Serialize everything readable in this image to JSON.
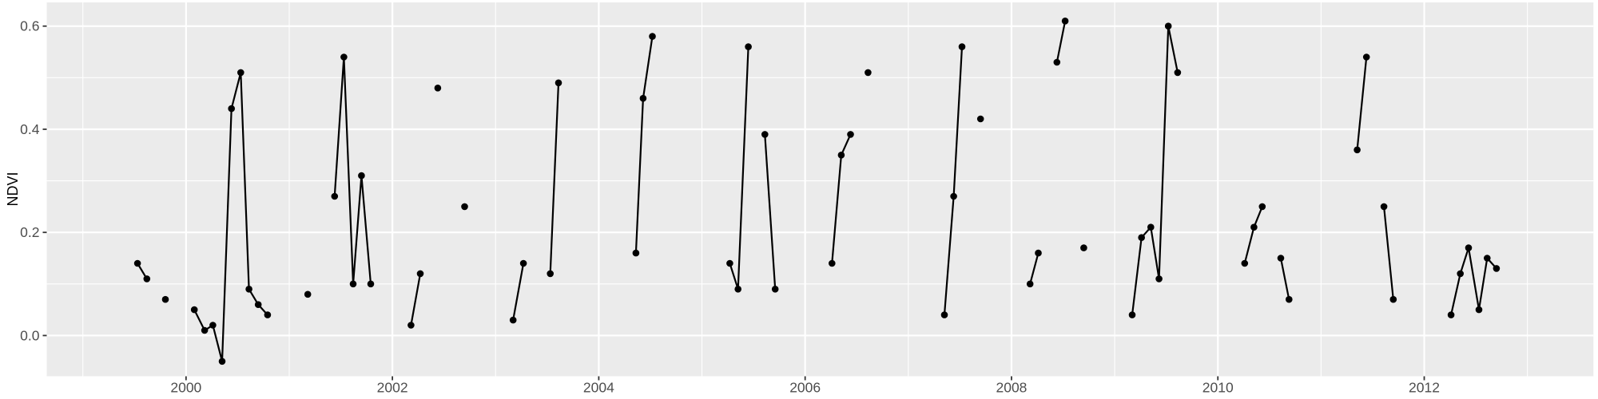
{
  "figure": {
    "ylabel": "NDVI",
    "colors": {
      "outer_bg": "#FFFFFF",
      "panel_bg": "#EBEBEB",
      "grid": "#FFFFFF",
      "series": "#000000",
      "axis_text": "#4D4D4D",
      "axis_title": "#000000",
      "tick_mark": "#333333"
    }
  },
  "chart_data": {
    "type": "line",
    "title": "",
    "xlabel": "",
    "ylabel": "NDVI",
    "legend": "none",
    "grid": "major+minor",
    "marker": "point",
    "xlim": [
      1998.65,
      2013.64
    ],
    "ylim": [
      -0.079,
      0.646
    ],
    "x_ticks": [
      {
        "v": 2000,
        "label": "2000"
      },
      {
        "v": 2002,
        "label": "2002"
      },
      {
        "v": 2004,
        "label": "2004"
      },
      {
        "v": 2006,
        "label": "2006"
      },
      {
        "v": 2008,
        "label": "2008"
      },
      {
        "v": 2010,
        "label": "2010"
      },
      {
        "v": 2012,
        "label": "2012"
      }
    ],
    "x_minor_ticks": [
      1999,
      2001,
      2003,
      2005,
      2007,
      2009,
      2011,
      2013
    ],
    "y_ticks": [
      {
        "v": 0.0,
        "label": "0.0"
      },
      {
        "v": 0.2,
        "label": "0.2"
      },
      {
        "v": 0.4,
        "label": "0.4"
      },
      {
        "v": 0.6,
        "label": "0.6"
      }
    ],
    "y_minor_ticks": [
      0.1,
      0.3,
      0.5
    ],
    "segments": [
      {
        "points": [
          [
            1999.53,
            0.14
          ],
          [
            1999.62,
            0.11
          ]
        ]
      },
      {
        "points": [
          [
            1999.8,
            0.07
          ]
        ]
      },
      {
        "points": [
          [
            2000.08,
            0.05
          ],
          [
            2000.18,
            0.01
          ],
          [
            2000.26,
            0.02
          ],
          [
            2000.35,
            -0.05
          ],
          [
            2000.44,
            0.44
          ],
          [
            2000.53,
            0.51
          ],
          [
            2000.61,
            0.09
          ],
          [
            2000.7,
            0.06
          ],
          [
            2000.79,
            0.04
          ]
        ]
      },
      {
        "points": [
          [
            2001.18,
            0.08
          ]
        ]
      },
      {
        "points": [
          [
            2001.44,
            0.27
          ],
          [
            2001.53,
            0.54
          ],
          [
            2001.62,
            0.1
          ],
          [
            2001.7,
            0.31
          ],
          [
            2001.79,
            0.1
          ]
        ]
      },
      {
        "points": [
          [
            2002.18,
            0.02
          ],
          [
            2002.27,
            0.12
          ]
        ]
      },
      {
        "points": [
          [
            2002.44,
            0.48
          ]
        ]
      },
      {
        "points": [
          [
            2002.7,
            0.25
          ]
        ]
      },
      {
        "points": [
          [
            2003.17,
            0.03
          ],
          [
            2003.27,
            0.14
          ]
        ]
      },
      {
        "points": [
          [
            2003.53,
            0.12
          ],
          [
            2003.61,
            0.49
          ]
        ]
      },
      {
        "points": [
          [
            2004.36,
            0.16
          ],
          [
            2004.43,
            0.46
          ],
          [
            2004.52,
            0.58
          ]
        ]
      },
      {
        "points": [
          [
            2005.27,
            0.14
          ],
          [
            2005.35,
            0.09
          ],
          [
            2005.45,
            0.56
          ]
        ]
      },
      {
        "points": [
          [
            2005.61,
            0.39
          ],
          [
            2005.71,
            0.09
          ]
        ]
      },
      {
        "points": [
          [
            2006.26,
            0.14
          ],
          [
            2006.35,
            0.35
          ],
          [
            2006.44,
            0.39
          ]
        ]
      },
      {
        "points": [
          [
            2006.61,
            0.51
          ]
        ]
      },
      {
        "points": [
          [
            2007.35,
            0.04
          ],
          [
            2007.44,
            0.27
          ],
          [
            2007.52,
            0.56
          ]
        ]
      },
      {
        "points": [
          [
            2007.7,
            0.42
          ]
        ]
      },
      {
        "points": [
          [
            2008.18,
            0.1
          ],
          [
            2008.26,
            0.16
          ]
        ]
      },
      {
        "points": [
          [
            2008.44,
            0.53
          ],
          [
            2008.52,
            0.61
          ]
        ]
      },
      {
        "points": [
          [
            2008.7,
            0.17
          ]
        ]
      },
      {
        "points": [
          [
            2009.17,
            0.04
          ],
          [
            2009.26,
            0.19
          ],
          [
            2009.35,
            0.21
          ],
          [
            2009.43,
            0.11
          ],
          [
            2009.52,
            0.6
          ],
          [
            2009.61,
            0.51
          ]
        ]
      },
      {
        "points": [
          [
            2010.26,
            0.14
          ],
          [
            2010.35,
            0.21
          ],
          [
            2010.43,
            0.25
          ]
        ]
      },
      {
        "points": [
          [
            2010.61,
            0.15
          ],
          [
            2010.69,
            0.07
          ]
        ]
      },
      {
        "points": [
          [
            2011.35,
            0.36
          ],
          [
            2011.44,
            0.54
          ]
        ]
      },
      {
        "points": [
          [
            2011.61,
            0.25
          ],
          [
            2011.7,
            0.07
          ]
        ]
      },
      {
        "points": [
          [
            2012.26,
            0.04
          ],
          [
            2012.35,
            0.12
          ],
          [
            2012.43,
            0.17
          ],
          [
            2012.53,
            0.05
          ],
          [
            2012.61,
            0.15
          ],
          [
            2012.7,
            0.13
          ]
        ]
      }
    ]
  }
}
